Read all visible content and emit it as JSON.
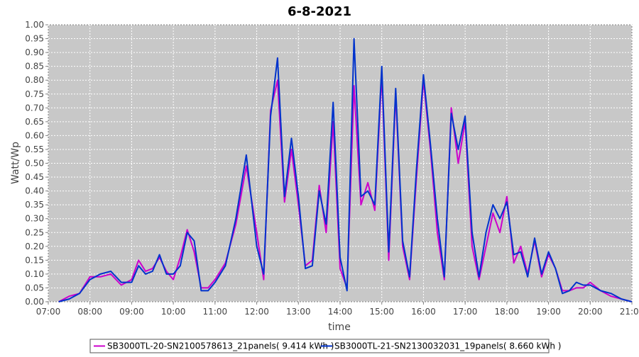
{
  "chart_data": {
    "type": "line",
    "title": "6-8-2021",
    "xlabel": "time",
    "ylabel": "Watt/Wp",
    "xlim": [
      "07:00",
      "21:00"
    ],
    "ylim": [
      0,
      1.0
    ],
    "x_ticks": [
      "07:00",
      "08:00",
      "09:00",
      "10:00",
      "11:00",
      "12:00",
      "13:00",
      "14:00",
      "15:00",
      "16:00",
      "17:00",
      "18:00",
      "19:00",
      "20:00",
      "21:00"
    ],
    "y_ticks": [
      "0.00",
      "0.05",
      "0.10",
      "0.15",
      "0.20",
      "0.25",
      "0.30",
      "0.35",
      "0.40",
      "0.45",
      "0.50",
      "0.55",
      "0.60",
      "0.65",
      "0.70",
      "0.75",
      "0.80",
      "0.85",
      "0.90",
      "0.95",
      "1.00"
    ],
    "grid": true,
    "legend_position": "bottom",
    "colors": {
      "plot_background": "#c8c8c8",
      "gridline": "#ffffff"
    },
    "series": [
      {
        "name": "SB3000TL-20-SN2100578613_21panels( 9.414 kWh )",
        "color": "#cc00cc",
        "points": [
          [
            "07:15",
            0.0
          ],
          [
            "07:30",
            0.02
          ],
          [
            "07:45",
            0.03
          ],
          [
            "08:00",
            0.09
          ],
          [
            "08:15",
            0.09
          ],
          [
            "08:30",
            0.1
          ],
          [
            "08:45",
            0.06
          ],
          [
            "09:00",
            0.08
          ],
          [
            "09:10",
            0.15
          ],
          [
            "09:20",
            0.11
          ],
          [
            "09:30",
            0.12
          ],
          [
            "09:40",
            0.16
          ],
          [
            "09:50",
            0.11
          ],
          [
            "10:00",
            0.08
          ],
          [
            "10:10",
            0.16
          ],
          [
            "10:20",
            0.26
          ],
          [
            "10:30",
            0.18
          ],
          [
            "10:40",
            0.05
          ],
          [
            "10:50",
            0.05
          ],
          [
            "11:00",
            0.08
          ],
          [
            "11:15",
            0.14
          ],
          [
            "11:30",
            0.28
          ],
          [
            "11:45",
            0.49
          ],
          [
            "12:00",
            0.25
          ],
          [
            "12:10",
            0.08
          ],
          [
            "12:20",
            0.69
          ],
          [
            "12:30",
            0.8
          ],
          [
            "12:40",
            0.36
          ],
          [
            "12:50",
            0.55
          ],
          [
            "13:00",
            0.35
          ],
          [
            "13:10",
            0.13
          ],
          [
            "13:20",
            0.15
          ],
          [
            "13:30",
            0.42
          ],
          [
            "13:40",
            0.25
          ],
          [
            "13:50",
            0.65
          ],
          [
            "14:00",
            0.12
          ],
          [
            "14:10",
            0.05
          ],
          [
            "14:20",
            0.78
          ],
          [
            "14:30",
            0.35
          ],
          [
            "14:40",
            0.43
          ],
          [
            "14:50",
            0.33
          ],
          [
            "15:00",
            0.82
          ],
          [
            "15:10",
            0.15
          ],
          [
            "15:20",
            0.75
          ],
          [
            "15:30",
            0.2
          ],
          [
            "15:40",
            0.08
          ],
          [
            "15:50",
            0.45
          ],
          [
            "16:00",
            0.8
          ],
          [
            "16:10",
            0.55
          ],
          [
            "16:20",
            0.25
          ],
          [
            "16:30",
            0.08
          ],
          [
            "16:40",
            0.7
          ],
          [
            "16:50",
            0.5
          ],
          [
            "17:00",
            0.65
          ],
          [
            "17:10",
            0.2
          ],
          [
            "17:20",
            0.08
          ],
          [
            "17:30",
            0.2
          ],
          [
            "17:40",
            0.32
          ],
          [
            "17:50",
            0.25
          ],
          [
            "18:00",
            0.38
          ],
          [
            "18:10",
            0.14
          ],
          [
            "18:20",
            0.2
          ],
          [
            "18:30",
            0.1
          ],
          [
            "18:40",
            0.22
          ],
          [
            "18:50",
            0.09
          ],
          [
            "19:00",
            0.17
          ],
          [
            "19:10",
            0.12
          ],
          [
            "19:20",
            0.04
          ],
          [
            "19:30",
            0.04
          ],
          [
            "19:40",
            0.05
          ],
          [
            "19:50",
            0.05
          ],
          [
            "20:00",
            0.07
          ],
          [
            "20:15",
            0.04
          ],
          [
            "20:30",
            0.02
          ],
          [
            "20:45",
            0.01
          ],
          [
            "21:00",
            0.0
          ]
        ]
      },
      {
        "name": "SB3000TL-21-SN2130032031_19panels( 8.660 kWh )",
        "color": "#0033cc",
        "points": [
          [
            "07:15",
            0.0
          ],
          [
            "07:30",
            0.01
          ],
          [
            "07:45",
            0.03
          ],
          [
            "08:00",
            0.08
          ],
          [
            "08:15",
            0.1
          ],
          [
            "08:30",
            0.11
          ],
          [
            "08:45",
            0.07
          ],
          [
            "09:00",
            0.07
          ],
          [
            "09:10",
            0.13
          ],
          [
            "09:20",
            0.1
          ],
          [
            "09:30",
            0.11
          ],
          [
            "09:40",
            0.17
          ],
          [
            "09:50",
            0.1
          ],
          [
            "10:00",
            0.1
          ],
          [
            "10:10",
            0.13
          ],
          [
            "10:20",
            0.25
          ],
          [
            "10:30",
            0.22
          ],
          [
            "10:40",
            0.04
          ],
          [
            "10:50",
            0.04
          ],
          [
            "11:00",
            0.07
          ],
          [
            "11:15",
            0.13
          ],
          [
            "11:30",
            0.3
          ],
          [
            "11:45",
            0.53
          ],
          [
            "12:00",
            0.2
          ],
          [
            "12:10",
            0.1
          ],
          [
            "12:20",
            0.67
          ],
          [
            "12:30",
            0.88
          ],
          [
            "12:40",
            0.38
          ],
          [
            "12:50",
            0.59
          ],
          [
            "13:00",
            0.38
          ],
          [
            "13:10",
            0.12
          ],
          [
            "13:20",
            0.13
          ],
          [
            "13:30",
            0.4
          ],
          [
            "13:40",
            0.28
          ],
          [
            "13:50",
            0.72
          ],
          [
            "14:00",
            0.16
          ],
          [
            "14:10",
            0.04
          ],
          [
            "14:20",
            0.95
          ],
          [
            "14:30",
            0.38
          ],
          [
            "14:40",
            0.4
          ],
          [
            "14:50",
            0.35
          ],
          [
            "15:00",
            0.85
          ],
          [
            "15:10",
            0.18
          ],
          [
            "15:20",
            0.77
          ],
          [
            "15:30",
            0.22
          ],
          [
            "15:40",
            0.09
          ],
          [
            "15:50",
            0.48
          ],
          [
            "16:00",
            0.82
          ],
          [
            "16:10",
            0.57
          ],
          [
            "16:20",
            0.3
          ],
          [
            "16:30",
            0.09
          ],
          [
            "16:40",
            0.68
          ],
          [
            "16:50",
            0.55
          ],
          [
            "17:00",
            0.67
          ],
          [
            "17:10",
            0.25
          ],
          [
            "17:20",
            0.09
          ],
          [
            "17:30",
            0.25
          ],
          [
            "17:40",
            0.35
          ],
          [
            "17:50",
            0.3
          ],
          [
            "18:00",
            0.36
          ],
          [
            "18:10",
            0.17
          ],
          [
            "18:20",
            0.18
          ],
          [
            "18:30",
            0.09
          ],
          [
            "18:40",
            0.23
          ],
          [
            "18:50",
            0.1
          ],
          [
            "19:00",
            0.18
          ],
          [
            "19:10",
            0.12
          ],
          [
            "19:20",
            0.03
          ],
          [
            "19:30",
            0.04
          ],
          [
            "19:40",
            0.07
          ],
          [
            "19:50",
            0.06
          ],
          [
            "20:00",
            0.06
          ],
          [
            "20:15",
            0.04
          ],
          [
            "20:30",
            0.03
          ],
          [
            "20:45",
            0.01
          ],
          [
            "21:00",
            0.0
          ]
        ]
      }
    ]
  }
}
